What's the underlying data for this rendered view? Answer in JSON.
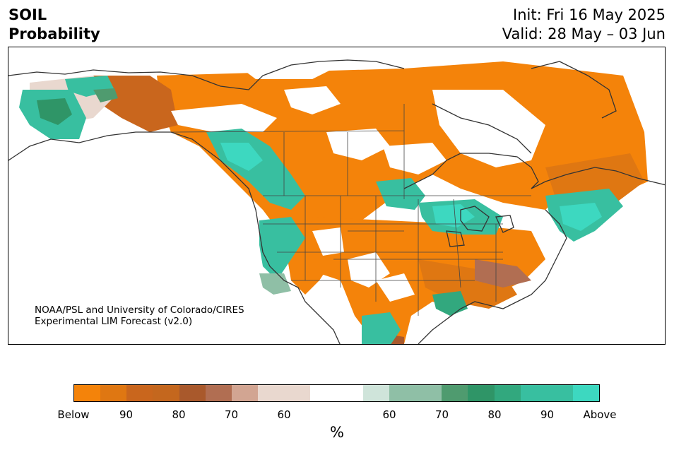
{
  "header": {
    "title_line1": "SOIL",
    "title_line2": "Probability",
    "init": "Init: Fri 16 May 2025",
    "valid": "Valid: 28 May – 03 Jun"
  },
  "map": {
    "region": "North America",
    "credit_line1": "NOAA/PSL and University of Colorado/CIRES",
    "credit_line2": "Experimental LIM Forecast (v2.0)"
  },
  "legend": {
    "unit": "%",
    "colors": [
      "#f4830a",
      "#df7712",
      "#c9661d",
      "#c4671e",
      "#a9592c",
      "#b16e52",
      "#d2a592",
      "#e9d8cf",
      "#e9d8cf",
      "#ffffff",
      "#ffffff",
      "#cfe4da",
      "#8fbfa6",
      "#8fbfa6",
      "#4f9b6f",
      "#2f9567",
      "#32a87e",
      "#38bfa0",
      "#38bfa0",
      "#3dd8c0"
    ],
    "tick_labels": [
      "Below",
      "90",
      "80",
      "70",
      "60",
      "60",
      "70",
      "80",
      "90",
      "Above"
    ]
  },
  "colors": {
    "below": "#f4830a",
    "above": "#3dd8c0",
    "coast": "#333333"
  }
}
